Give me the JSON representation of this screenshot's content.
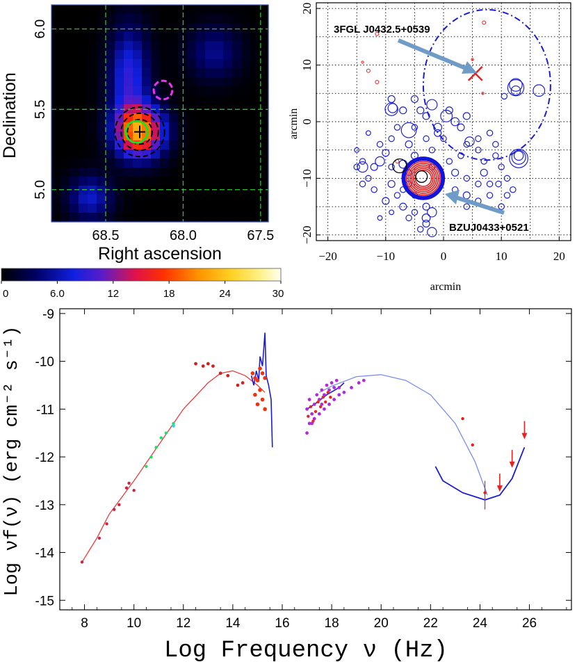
{
  "chart_data": [
    {
      "type": "heatmap",
      "title": "",
      "xlabel": "Right ascension",
      "ylabel": "Declination",
      "xlim": [
        68.85,
        67.45
      ],
      "ylim": [
        4.8,
        6.15
      ],
      "xticks": [
        68.5,
        68.0,
        67.5
      ],
      "xtick_labels": [
        "68.5",
        "68.0",
        "67.5"
      ],
      "yticks": [
        5.0,
        5.5,
        6.0
      ],
      "ytick_labels": [
        "5.0",
        "5.5",
        "6.0"
      ],
      "grid": true,
      "grid_x": [
        68.5,
        68.0,
        67.5
      ],
      "grid_y": [
        5.0,
        5.5,
        6.0
      ],
      "markers": [
        {
          "name": "source-plus",
          "ra": 68.28,
          "dec": 5.36
        },
        {
          "name": "green-circle",
          "ra": 68.3,
          "dec": 5.36,
          "r_deg": 0.07,
          "color": "#22dd22"
        },
        {
          "name": "magenta-dashed-circle",
          "ra": 68.13,
          "dec": 5.62,
          "r_deg": 0.06,
          "color": "#ee33ee"
        },
        {
          "name": "black-dashed-contours",
          "ra": 68.28,
          "dec": 5.36,
          "r_deg": [
            0.08,
            0.12,
            0.16
          ]
        }
      ],
      "colorbar": {
        "min": 0,
        "max": 30,
        "ticks": [
          0,
          6,
          12,
          18,
          24,
          30
        ],
        "tick_labels": [
          "0",
          "6.0",
          "12",
          "18",
          "24",
          "30"
        ]
      }
    },
    {
      "type": "scatter",
      "title": "",
      "xlabel": "arcmin",
      "ylabel": "arcmin",
      "xlim": [
        -22,
        22
      ],
      "ylim": [
        -21,
        21
      ],
      "xticks": [
        -20,
        -10,
        0,
        10,
        20
      ],
      "yticks": [
        -20,
        -10,
        0,
        10,
        20
      ],
      "tick_labels": [
        "−20",
        "−10",
        "0",
        "10",
        "20"
      ],
      "grid": true,
      "annotations": [
        {
          "text": "3FGL J0432.5+0539",
          "x": 5.5,
          "y": 8.5
        },
        {
          "text": "BZUJ0433+0521",
          "x": -3.5,
          "y": -10
        }
      ],
      "ellipse": {
        "cx": 7.5,
        "cy": 6.5,
        "rx": 11,
        "ry": 13
      },
      "fermi_position": {
        "x": 5.5,
        "y": 8.5
      },
      "blazar_position": {
        "x": -3.5,
        "y": -10
      },
      "blue_sources": [
        [
          -14,
          -7,
          0.5
        ],
        [
          -12,
          -8,
          0.6
        ],
        [
          -11,
          -7,
          0.8
        ],
        [
          -9,
          -8,
          0.5
        ],
        [
          -7,
          -7.5,
          0.7
        ],
        [
          -6,
          -9,
          0.5
        ],
        [
          -5,
          -6,
          0.6
        ],
        [
          -2,
          -8,
          0.5
        ],
        [
          -13,
          -2,
          0.4
        ],
        [
          -11,
          -4,
          0.5
        ],
        [
          -10,
          -5.5,
          0.6
        ],
        [
          -9,
          -3,
          0.5
        ],
        [
          -8,
          -1,
          0.5
        ],
        [
          -6,
          -4,
          0.6
        ],
        [
          -5,
          -1,
          0.5
        ],
        [
          -4,
          2,
          0.6
        ],
        [
          -3,
          -3,
          0.5
        ],
        [
          -2,
          -5,
          0.5
        ],
        [
          -1,
          -2,
          0.6
        ],
        [
          0,
          -3,
          0.5
        ],
        [
          -15,
          -5,
          0.4
        ],
        [
          -14,
          -11,
          0.5
        ],
        [
          -12,
          -12,
          0.5
        ],
        [
          -10,
          -14,
          0.6
        ],
        [
          -8,
          -13,
          0.5
        ],
        [
          -7,
          -15,
          0.6
        ],
        [
          -5,
          -13,
          0.5
        ],
        [
          -3,
          -15,
          0.6
        ],
        [
          -2,
          -16,
          0.8
        ],
        [
          -3,
          -17,
          0.7
        ],
        [
          -3,
          -18,
          0.6
        ],
        [
          -2,
          -19.5,
          0.8
        ],
        [
          -4,
          -19,
          0.5
        ],
        [
          -6,
          -17,
          0.5
        ],
        [
          -9,
          -16,
          0.4
        ],
        [
          -11,
          -17,
          0.4
        ],
        [
          -7,
          -12,
          0.5
        ],
        [
          -5,
          -16,
          0.5
        ],
        [
          -9,
          -11,
          0.6
        ],
        [
          -6,
          -11,
          0.5
        ],
        [
          1,
          -7,
          0.5
        ],
        [
          2,
          -9,
          0.6
        ],
        [
          3,
          -6,
          0.5
        ],
        [
          4,
          -10,
          0.5
        ],
        [
          2,
          -12,
          0.5
        ],
        [
          4,
          -13,
          0.6
        ],
        [
          6,
          -11,
          0.5
        ],
        [
          7,
          -9,
          0.6
        ],
        [
          8,
          -13,
          0.5
        ],
        [
          6,
          -14,
          0.5
        ],
        [
          4,
          -15,
          0.5
        ],
        [
          8,
          -11,
          0.5
        ],
        [
          2,
          0,
          0.7
        ],
        [
          1,
          2,
          0.6
        ],
        [
          3,
          -1,
          0.6
        ],
        [
          4,
          1,
          0.6
        ],
        [
          6,
          -3,
          0.5
        ],
        [
          8,
          -2,
          0.5
        ],
        [
          6,
          -5,
          0.5
        ],
        [
          4,
          -4,
          0.5
        ],
        [
          9,
          -6,
          0.5
        ],
        [
          10,
          -8,
          0.5
        ],
        [
          11,
          -10,
          0.5
        ],
        [
          12,
          -12,
          0.5
        ],
        [
          10,
          -15,
          0.5
        ],
        [
          9,
          -4,
          0.5
        ],
        [
          -9,
          4,
          0.6
        ],
        [
          -7,
          2,
          0.6
        ],
        [
          -6,
          -1.5,
          1.3
        ],
        [
          -2,
          3,
          0.9
        ],
        [
          -1,
          -1,
          0.7
        ],
        [
          -5,
          4,
          0.6
        ],
        [
          -3,
          1,
          0.6
        ],
        [
          -14,
          -8,
          0.9
        ],
        [
          4.5,
          -3.5,
          0.8
        ],
        [
          10.5,
          4.5,
          0.5
        ],
        [
          7,
          -7,
          0.5
        ],
        [
          12.5,
          6.5,
          1.1
        ],
        [
          12.5,
          6,
          1.4
        ],
        [
          12.5,
          5.5,
          0.8
        ],
        [
          16.5,
          5.5,
          1.0
        ],
        [
          13,
          -6,
          0.8
        ],
        [
          13,
          -6.3,
          1.2
        ],
        [
          13,
          -6.5,
          1.6
        ],
        [
          -8.8,
          2.4,
          0.8
        ],
        [
          -9,
          2.2,
          1.1
        ],
        [
          0.5,
          1,
          1.0
        ],
        [
          -13,
          -10,
          0.5
        ],
        [
          -15,
          -8,
          0.5
        ],
        [
          11,
          -13,
          0.5
        ],
        [
          9.5,
          -11,
          0.5
        ]
      ],
      "red_sources": [
        [
          -11.5,
          15.5,
          0.3
        ],
        [
          -14,
          10.5,
          0.2
        ],
        [
          -13,
          9,
          0.3
        ],
        [
          -11.5,
          7,
          0.3
        ],
        [
          7,
          17.5,
          0.3
        ],
        [
          6.8,
          5,
          0.2
        ],
        [
          5,
          11,
          0.2
        ],
        [
          -8,
          -7,
          0.3
        ]
      ]
    },
    {
      "type": "scatter",
      "title": "",
      "xlabel": "Log Frequency ν (Hz)",
      "ylabel": "Log νf(ν) (erg cm⁻² s⁻¹)",
      "xlim": [
        7,
        27.7
      ],
      "ylim": [
        -15.2,
        -8.9
      ],
      "xticks": [
        8,
        10,
        12,
        14,
        16,
        18,
        20,
        22,
        24,
        26
      ],
      "yticks": [
        -9,
        -10,
        -11,
        -12,
        -13,
        -14,
        -15
      ],
      "ytick_labels": [
        "-9",
        "-10",
        "-11",
        "-12",
        "-13",
        "-14",
        "-15"
      ],
      "sync_model": [
        [
          7.9,
          -14.2
        ],
        [
          8.5,
          -13.7
        ],
        [
          9,
          -13.2
        ],
        [
          10,
          -12.5
        ],
        [
          11,
          -11.75
        ],
        [
          12,
          -11.0
        ],
        [
          13,
          -10.45
        ],
        [
          13.5,
          -10.25
        ],
        [
          14,
          -10.2
        ],
        [
          14.5,
          -10.3
        ],
        [
          15,
          -10.5
        ],
        [
          15.3,
          -10.65
        ]
      ],
      "ic_model": [
        [
          17.5,
          -10.65
        ],
        [
          18,
          -10.52
        ],
        [
          19,
          -10.32
        ],
        [
          20,
          -10.28
        ],
        [
          21,
          -10.4
        ],
        [
          22,
          -10.7
        ],
        [
          23,
          -11.3
        ],
        [
          23.8,
          -12.1
        ],
        [
          24.3,
          -12.8
        ]
      ],
      "radio_points": [
        [
          7.9,
          -14.2
        ],
        [
          8.6,
          -13.7
        ],
        [
          8.9,
          -13.4
        ],
        [
          9.2,
          -13.1
        ],
        [
          9.4,
          -13.0
        ],
        [
          9.7,
          -12.65
        ],
        [
          9.8,
          -12.55
        ],
        [
          10.0,
          -12.7
        ]
      ],
      "mm_points": [
        [
          10.5,
          -12.2
        ],
        [
          10.7,
          -12.0
        ],
        [
          10.9,
          -11.8
        ],
        [
          11.1,
          -11.6
        ],
        [
          11.3,
          -11.5
        ],
        [
          11.6,
          -11.3
        ]
      ],
      "submm_points": [
        [
          12.5,
          -10.05
        ],
        [
          12.8,
          -10.1
        ],
        [
          13.0,
          -10.05
        ],
        [
          13.2,
          -10.1
        ],
        [
          13.5,
          -10.25
        ],
        [
          13.8,
          -10.3
        ],
        [
          14.2,
          -10.5
        ],
        [
          14.4,
          -10.45
        ]
      ],
      "optical_points": [
        [
          14.8,
          -10.25
        ],
        [
          14.9,
          -10.35
        ],
        [
          15.0,
          -10.4
        ],
        [
          15.1,
          -10.15
        ],
        [
          15.2,
          -10.25
        ],
        [
          15.3,
          -10.35
        ],
        [
          15.1,
          -10.6
        ],
        [
          15.2,
          -10.8
        ],
        [
          15.3,
          -11.0
        ],
        [
          14.9,
          -10.7
        ],
        [
          15.0,
          -10.9
        ]
      ],
      "xray_points": [
        [
          17.0,
          -11.0
        ],
        [
          17.1,
          -10.8
        ],
        [
          17.2,
          -11.1
        ],
        [
          17.3,
          -10.9
        ],
        [
          17.4,
          -10.7
        ],
        [
          17.5,
          -10.8
        ],
        [
          17.6,
          -10.6
        ],
        [
          17.7,
          -10.7
        ],
        [
          17.8,
          -10.5
        ],
        [
          17.9,
          -10.6
        ],
        [
          18.0,
          -10.45
        ],
        [
          18.1,
          -10.55
        ],
        [
          18.2,
          -10.4
        ],
        [
          18.3,
          -10.55
        ],
        [
          17.2,
          -11.3
        ],
        [
          17.3,
          -11.2
        ],
        [
          17.5,
          -11.1
        ],
        [
          17.7,
          -11.0
        ],
        [
          17.9,
          -10.9
        ],
        [
          18.1,
          -10.8
        ],
        [
          17.0,
          -11.5
        ],
        [
          17.1,
          -11.3
        ],
        [
          17.6,
          -10.9
        ],
        [
          18.3,
          -10.7
        ],
        [
          18.5,
          -10.65
        ],
        [
          18.8,
          -10.55
        ],
        [
          19.1,
          -10.45
        ],
        [
          19.3,
          -10.4
        ]
      ],
      "gamma_points": [
        [
          23.3,
          -11.2
        ],
        [
          23.7,
          -11.75
        ],
        [
          24.2,
          -12.75
        ]
      ],
      "upper_limits": [
        [
          24.8,
          -12.7
        ],
        [
          25.3,
          -12.2
        ],
        [
          25.8,
          -11.6
        ]
      ],
      "sensitivity_curve": [
        [
          22.2,
          -12.2
        ],
        [
          22.5,
          -12.5
        ],
        [
          23.3,
          -12.75
        ],
        [
          24.2,
          -12.9
        ],
        [
          24.8,
          -12.8
        ],
        [
          25.3,
          -12.45
        ],
        [
          25.8,
          -11.8
        ]
      ]
    }
  ]
}
